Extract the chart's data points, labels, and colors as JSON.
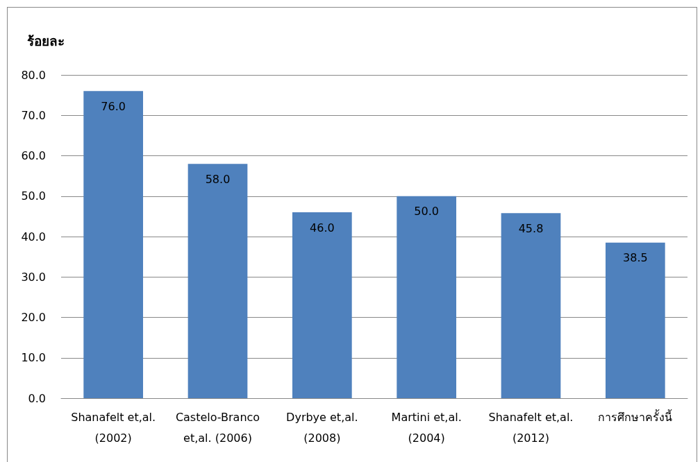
{
  "chart_data": {
    "type": "bar",
    "ylabel": "ร้อยละ",
    "categories": [
      "Shanafelt et,al.\n(2002)",
      "Castelo-Branco\net,al. (2006)",
      "Dyrbye et,al.\n(2008)",
      "Martini et,al.\n(2004)",
      "Shanafelt et,al.\n(2012)",
      "การศึกษาครั้งนี้"
    ],
    "values": [
      76.0,
      58.0,
      46.0,
      50.0,
      45.8,
      38.5
    ],
    "color": "#4f81bd",
    "ylim": [
      0,
      80
    ],
    "yticks": [
      {
        "value": 0,
        "label": "0.0"
      },
      {
        "value": 10,
        "label": "10.0"
      },
      {
        "value": 20,
        "label": "20.0"
      },
      {
        "value": 30,
        "label": "30.0"
      },
      {
        "value": 40,
        "label": "40.0"
      },
      {
        "value": 50,
        "label": "50.0"
      },
      {
        "value": 60,
        "label": "60.0"
      },
      {
        "value": 70,
        "label": "70.0"
      },
      {
        "value": 80,
        "label": "80.0"
      }
    ],
    "grid": "y",
    "value_labels": [
      "76.0",
      "58.0",
      "46.0",
      "50.0",
      "45.8",
      "38.5"
    ]
  }
}
